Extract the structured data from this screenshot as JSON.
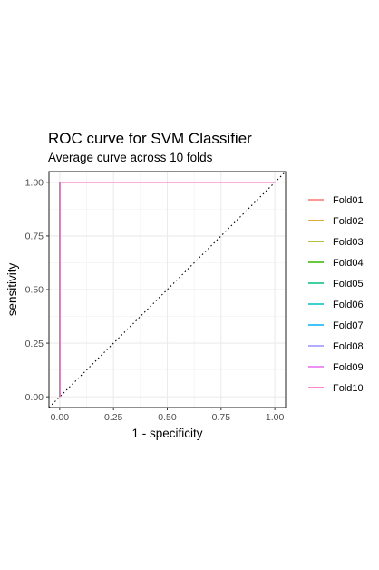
{
  "chart_data": {
    "type": "line",
    "title": "ROC curve for SVM Classifier",
    "subtitle": "Average curve across 10 folds",
    "xlabel": "1 - specificity",
    "ylabel": "sensitivity",
    "xlim": [
      -0.05,
      1.05
    ],
    "ylim": [
      -0.05,
      1.05
    ],
    "x_ticks": [
      "0.00",
      "0.25",
      "0.50",
      "0.75",
      "1.00"
    ],
    "y_ticks": [
      "0.00",
      "0.25",
      "0.50",
      "0.75",
      "1.00"
    ],
    "x_tick_values": [
      0,
      0.25,
      0.5,
      0.75,
      1
    ],
    "y_tick_values": [
      0,
      0.25,
      0.5,
      0.75,
      1
    ],
    "grid": true,
    "legend_position": "right",
    "reference_line": {
      "x": [
        -0.05,
        1.05
      ],
      "y": [
        -0.05,
        1.05
      ],
      "style": "dotted",
      "color": "#000000"
    },
    "series": [
      {
        "name": "Fold01",
        "color": "#F8766D",
        "x": [
          0,
          0,
          1
        ],
        "y": [
          0,
          1,
          1
        ]
      },
      {
        "name": "Fold02",
        "color": "#D89000",
        "x": [
          0,
          0,
          1
        ],
        "y": [
          0,
          1,
          1
        ]
      },
      {
        "name": "Fold03",
        "color": "#A3A500",
        "x": [
          0,
          0,
          1
        ],
        "y": [
          0,
          1,
          1
        ]
      },
      {
        "name": "Fold04",
        "color": "#39B600",
        "x": [
          0,
          0,
          1
        ],
        "y": [
          0,
          1,
          1
        ]
      },
      {
        "name": "Fold05",
        "color": "#00BF7D",
        "x": [
          0,
          0,
          1
        ],
        "y": [
          0,
          1,
          1
        ]
      },
      {
        "name": "Fold06",
        "color": "#00BFC4",
        "x": [
          0,
          0,
          1
        ],
        "y": [
          0,
          1,
          1
        ]
      },
      {
        "name": "Fold07",
        "color": "#00B0F6",
        "x": [
          0,
          0,
          1
        ],
        "y": [
          0,
          1,
          1
        ]
      },
      {
        "name": "Fold08",
        "color": "#9590FF",
        "x": [
          0,
          0,
          1
        ],
        "y": [
          0,
          1,
          1
        ]
      },
      {
        "name": "Fold09",
        "color": "#E76BF3",
        "x": [
          0,
          0,
          1
        ],
        "y": [
          0,
          1,
          1
        ]
      },
      {
        "name": "Fold10",
        "color": "#FF62BC",
        "x": [
          0,
          0,
          1
        ],
        "y": [
          0,
          1,
          1
        ]
      }
    ]
  }
}
